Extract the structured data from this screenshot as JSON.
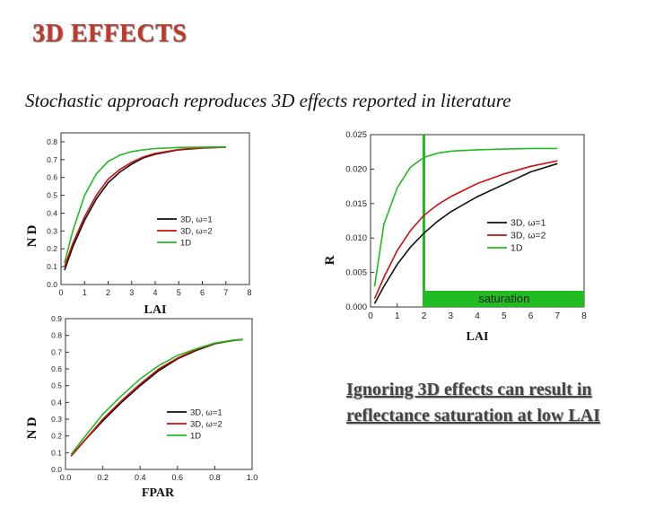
{
  "slide": {
    "title": "3D EFFECTS",
    "subtitle": "Stochastic approach reproduces 3D effects reported in literature",
    "note": "Ignoring 3D effects can result in reflectance saturation at low LAI"
  },
  "colors": {
    "black": "#111111",
    "red": "#cc1111",
    "green": "#22bb22",
    "title": "#c0392b"
  },
  "chart_data": [
    {
      "id": "chart1",
      "type": "line",
      "xlabel": "LAI",
      "ylabel": "D",
      "ylabel_extra": "N",
      "xlim": [
        0,
        8
      ],
      "ylim": [
        0,
        0.85
      ],
      "xticks": [
        0,
        1,
        2,
        3,
        4,
        5,
        6,
        7,
        8
      ],
      "yticks": [
        0.0,
        0.1,
        0.2,
        0.3,
        0.4,
        0.5,
        0.6,
        0.7,
        0.8
      ],
      "ytick_labels": [
        "0.0",
        "0.1",
        "0.2",
        "0.3",
        "0.4",
        "0.5",
        "0.6",
        "0.7",
        "0.8"
      ],
      "legend": [
        "3D, ω=1",
        "3D, ω=2",
        "1D"
      ],
      "series": [
        {
          "name": "3D, ω=1",
          "color": "#111111",
          "x": [
            0.15,
            0.5,
            1,
            1.5,
            2,
            2.5,
            3,
            3.5,
            4,
            5,
            6,
            7
          ],
          "y": [
            0.08,
            0.21,
            0.36,
            0.48,
            0.57,
            0.63,
            0.675,
            0.71,
            0.73,
            0.755,
            0.765,
            0.77
          ]
        },
        {
          "name": "3D, ω=2",
          "color": "#cc1111",
          "x": [
            0.15,
            0.5,
            1,
            1.5,
            2,
            2.5,
            3,
            3.5,
            4,
            5,
            6,
            7
          ],
          "y": [
            0.1,
            0.23,
            0.38,
            0.5,
            0.59,
            0.645,
            0.685,
            0.715,
            0.735,
            0.757,
            0.766,
            0.77
          ]
        },
        {
          "name": "1D",
          "color": "#22bb22",
          "x": [
            0.15,
            0.5,
            1,
            1.5,
            2,
            2.5,
            3,
            3.5,
            4,
            5,
            6,
            7
          ],
          "y": [
            0.12,
            0.3,
            0.5,
            0.62,
            0.69,
            0.725,
            0.745,
            0.755,
            0.762,
            0.768,
            0.77,
            0.771
          ]
        }
      ]
    },
    {
      "id": "chart2",
      "type": "line",
      "xlabel": "LAI",
      "ylabel": "R",
      "xlim": [
        0,
        8
      ],
      "ylim": [
        0,
        0.025
      ],
      "xticks": [
        0,
        1,
        2,
        3,
        4,
        5,
        6,
        7,
        8
      ],
      "yticks": [
        0.0,
        0.005,
        0.01,
        0.015,
        0.02,
        0.025
      ],
      "ytick_labels": [
        "0.000",
        "0.005",
        "0.010",
        "0.015",
        "0.020",
        "0.025"
      ],
      "legend": [
        "3D, ω=1",
        "3D, ω=2",
        "1D"
      ],
      "annotation": {
        "text": "saturation",
        "x_start": 2,
        "color": "#22bb22"
      },
      "series": [
        {
          "name": "3D, ω=1",
          "color": "#111111",
          "x": [
            0.15,
            0.5,
            1,
            1.5,
            2,
            2.5,
            3,
            4,
            5,
            6,
            7
          ],
          "y": [
            0.0005,
            0.003,
            0.0062,
            0.0087,
            0.0107,
            0.0124,
            0.0138,
            0.016,
            0.0178,
            0.0196,
            0.0208
          ]
        },
        {
          "name": "3D, ω=2",
          "color": "#cc1111",
          "x": [
            0.15,
            0.5,
            1,
            1.5,
            2,
            2.5,
            3,
            4,
            5,
            6,
            7
          ],
          "y": [
            0.0012,
            0.0043,
            0.0082,
            0.0111,
            0.0133,
            0.0148,
            0.016,
            0.0179,
            0.0193,
            0.0204,
            0.0212
          ]
        },
        {
          "name": "1D",
          "color": "#22bb22",
          "x": [
            0.15,
            0.5,
            1,
            1.5,
            2,
            2.5,
            3,
            4,
            5,
            6,
            7
          ],
          "y": [
            0.003,
            0.012,
            0.0173,
            0.0203,
            0.0217,
            0.0223,
            0.0226,
            0.0228,
            0.0229,
            0.023,
            0.023
          ]
        }
      ]
    },
    {
      "id": "chart3",
      "type": "line",
      "xlabel": "FPAR",
      "ylabel": "D",
      "ylabel_extra": "N",
      "xlim": [
        0,
        1
      ],
      "ylim": [
        0,
        0.9
      ],
      "xticks": [
        0,
        0.2,
        0.4,
        0.6,
        0.8,
        1.0
      ],
      "xtick_labels": [
        "0.0",
        "0.2",
        "0.4",
        "0.6",
        "0.8",
        "1.0"
      ],
      "yticks": [
        0.0,
        0.1,
        0.2,
        0.3,
        0.4,
        0.5,
        0.6,
        0.7,
        0.8,
        0.9
      ],
      "ytick_labels": [
        "0.0",
        "0.1",
        "0.2",
        "0.3",
        "0.4",
        "0.5",
        "0.6",
        "0.7",
        "0.8",
        "0.9"
      ],
      "legend": [
        "3D, ω=1",
        "3D, ω=2",
        "1D"
      ],
      "series": [
        {
          "name": "3D, ω=1",
          "color": "#111111",
          "x": [
            0.03,
            0.1,
            0.2,
            0.3,
            0.4,
            0.5,
            0.6,
            0.7,
            0.8,
            0.9,
            0.95
          ],
          "y": [
            0.08,
            0.17,
            0.29,
            0.4,
            0.5,
            0.59,
            0.66,
            0.71,
            0.75,
            0.77,
            0.775
          ]
        },
        {
          "name": "3D, ω=2",
          "color": "#cc1111",
          "x": [
            0.03,
            0.1,
            0.2,
            0.3,
            0.4,
            0.5,
            0.6,
            0.7,
            0.8,
            0.9,
            0.95
          ],
          "y": [
            0.08,
            0.17,
            0.3,
            0.41,
            0.51,
            0.6,
            0.665,
            0.715,
            0.752,
            0.771,
            0.776
          ]
        },
        {
          "name": "1D",
          "color": "#22bb22",
          "x": [
            0.03,
            0.1,
            0.2,
            0.3,
            0.4,
            0.5,
            0.6,
            0.7,
            0.8,
            0.9,
            0.95
          ],
          "y": [
            0.09,
            0.19,
            0.33,
            0.44,
            0.54,
            0.62,
            0.68,
            0.72,
            0.755,
            0.772,
            0.776
          ]
        }
      ]
    }
  ]
}
